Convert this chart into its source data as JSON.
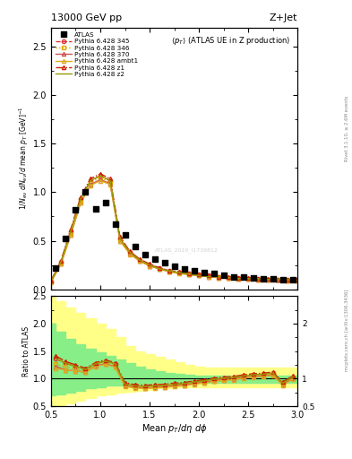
{
  "title_top": "13000 GeV pp",
  "title_right": "Z+Jet",
  "annotation": "<pT> (ATLAS UE in Z production)",
  "watermark": "ATLAS_2019_I1739812",
  "side_text": "Rivet 3.1.10, ≥ 2.6M events",
  "side_text2": "mcplots.cern.ch [arXiv:1306.3436]",
  "atlas_x": [
    0.55,
    0.65,
    0.75,
    0.85,
    0.95,
    1.05,
    1.15,
    1.25,
    1.35,
    1.45,
    1.55,
    1.65,
    1.75,
    1.85,
    1.95,
    2.05,
    2.15,
    2.25,
    2.35,
    2.45,
    2.55,
    2.65,
    2.75,
    2.85,
    2.95
  ],
  "atlas_y": [
    0.22,
    0.52,
    0.82,
    1.0,
    0.83,
    0.89,
    0.67,
    0.56,
    0.44,
    0.36,
    0.31,
    0.27,
    0.24,
    0.21,
    0.19,
    0.17,
    0.16,
    0.14,
    0.13,
    0.13,
    0.12,
    0.11,
    0.11,
    0.1,
    0.1
  ],
  "mc_x": [
    0.5,
    0.6,
    0.7,
    0.8,
    0.9,
    1.0,
    1.1,
    1.2,
    1.3,
    1.4,
    1.5,
    1.6,
    1.7,
    1.8,
    1.9,
    2.0,
    2.1,
    2.2,
    2.3,
    2.4,
    2.5,
    2.6,
    2.7,
    2.8,
    2.9,
    3.0
  ],
  "py345_y": [
    0.08,
    0.28,
    0.6,
    0.93,
    1.12,
    1.17,
    1.12,
    0.52,
    0.38,
    0.3,
    0.25,
    0.22,
    0.19,
    0.17,
    0.16,
    0.15,
    0.14,
    0.13,
    0.12,
    0.12,
    0.11,
    0.11,
    0.1,
    0.1,
    0.1,
    0.1
  ],
  "py346_y": [
    0.08,
    0.27,
    0.58,
    0.91,
    1.1,
    1.15,
    1.1,
    0.51,
    0.37,
    0.29,
    0.24,
    0.21,
    0.18,
    0.17,
    0.15,
    0.14,
    0.13,
    0.13,
    0.12,
    0.11,
    0.11,
    0.1,
    0.1,
    0.1,
    0.09,
    0.09
  ],
  "py370_y": [
    0.08,
    0.26,
    0.56,
    0.89,
    1.08,
    1.13,
    1.09,
    0.5,
    0.37,
    0.29,
    0.24,
    0.21,
    0.18,
    0.17,
    0.15,
    0.14,
    0.13,
    0.12,
    0.12,
    0.11,
    0.11,
    0.1,
    0.1,
    0.1,
    0.09,
    0.09
  ],
  "pyambt1_y": [
    0.07,
    0.26,
    0.56,
    0.89,
    1.07,
    1.12,
    1.08,
    0.5,
    0.36,
    0.29,
    0.24,
    0.21,
    0.18,
    0.16,
    0.15,
    0.14,
    0.13,
    0.12,
    0.12,
    0.11,
    0.11,
    0.1,
    0.1,
    0.1,
    0.09,
    0.09
  ],
  "pyz1_y": [
    0.09,
    0.29,
    0.62,
    0.95,
    1.14,
    1.19,
    1.14,
    0.54,
    0.39,
    0.31,
    0.26,
    0.22,
    0.19,
    0.18,
    0.16,
    0.15,
    0.14,
    0.13,
    0.13,
    0.12,
    0.12,
    0.11,
    0.11,
    0.1,
    0.1,
    0.1
  ],
  "pyz2_y": [
    0.08,
    0.28,
    0.6,
    0.93,
    1.12,
    1.17,
    1.12,
    0.52,
    0.38,
    0.3,
    0.25,
    0.21,
    0.19,
    0.17,
    0.16,
    0.14,
    0.13,
    0.13,
    0.12,
    0.11,
    0.11,
    0.11,
    0.1,
    0.1,
    0.1,
    0.09
  ],
  "ratio_x": [
    0.55,
    0.65,
    0.75,
    0.85,
    0.95,
    1.05,
    1.15,
    1.25,
    1.35,
    1.45,
    1.55,
    1.65,
    1.75,
    1.85,
    1.95,
    2.05,
    2.15,
    2.25,
    2.35,
    2.45,
    2.55,
    2.65,
    2.75,
    2.85,
    2.95
  ],
  "ratio_py345_y": [
    1.36,
    1.28,
    1.22,
    1.17,
    1.27,
    1.32,
    1.27,
    0.9,
    0.87,
    0.86,
    0.87,
    0.88,
    0.9,
    0.91,
    0.94,
    0.96,
    0.99,
    1.01,
    1.02,
    1.05,
    1.07,
    1.08,
    1.1,
    0.92,
    1.03
  ],
  "ratio_py346_y": [
    1.27,
    1.21,
    1.18,
    1.14,
    1.25,
    1.29,
    1.24,
    0.88,
    0.85,
    0.84,
    0.85,
    0.86,
    0.88,
    0.89,
    0.92,
    0.94,
    0.97,
    0.99,
    1.0,
    1.03,
    1.05,
    1.06,
    1.08,
    0.9,
    1.01
  ],
  "ratio_py370_y": [
    1.22,
    1.16,
    1.14,
    1.12,
    1.23,
    1.27,
    1.22,
    0.87,
    0.84,
    0.83,
    0.84,
    0.85,
    0.87,
    0.88,
    0.91,
    0.93,
    0.96,
    0.98,
    0.99,
    1.02,
    1.04,
    1.05,
    1.07,
    0.89,
    1.0
  ],
  "ratio_pyambt1_y": [
    1.18,
    1.16,
    1.14,
    1.12,
    1.22,
    1.26,
    1.21,
    0.86,
    0.83,
    0.82,
    0.83,
    0.84,
    0.86,
    0.87,
    0.9,
    0.92,
    0.95,
    0.97,
    0.98,
    1.01,
    1.03,
    1.04,
    1.06,
    0.88,
    0.99
  ],
  "ratio_pyz1_y": [
    1.41,
    1.31,
    1.25,
    1.19,
    1.29,
    1.34,
    1.29,
    0.93,
    0.89,
    0.88,
    0.89,
    0.9,
    0.92,
    0.93,
    0.96,
    0.98,
    1.01,
    1.03,
    1.04,
    1.07,
    1.09,
    1.1,
    1.12,
    0.94,
    1.05
  ],
  "ratio_pyz2_y": [
    1.36,
    1.28,
    1.22,
    1.17,
    1.27,
    1.32,
    1.27,
    0.9,
    0.87,
    0.86,
    0.87,
    0.88,
    0.9,
    0.91,
    0.94,
    0.96,
    0.99,
    1.01,
    1.02,
    1.05,
    1.07,
    1.08,
    1.1,
    0.92,
    1.03
  ],
  "band_x": [
    0.5,
    0.6,
    0.7,
    0.8,
    0.9,
    1.0,
    1.1,
    1.2,
    1.3,
    1.4,
    1.5,
    1.6,
    1.7,
    1.8,
    1.9,
    2.0,
    2.1,
    2.2,
    2.3,
    2.4,
    2.5,
    2.6,
    2.7,
    2.8,
    2.9,
    3.0
  ],
  "band_yellow_lo": [
    0.5,
    0.52,
    0.55,
    0.6,
    0.65,
    0.7,
    0.72,
    0.75,
    0.77,
    0.78,
    0.8,
    0.82,
    0.83,
    0.84,
    0.85,
    0.85,
    0.85,
    0.85,
    0.85,
    0.85,
    0.85,
    0.85,
    0.85,
    0.85,
    0.85,
    0.85
  ],
  "band_yellow_hi": [
    2.5,
    2.4,
    2.3,
    2.2,
    2.1,
    2.0,
    1.9,
    1.75,
    1.6,
    1.5,
    1.45,
    1.4,
    1.35,
    1.3,
    1.25,
    1.22,
    1.2,
    1.2,
    1.2,
    1.2,
    1.2,
    1.2,
    1.2,
    1.2,
    1.2,
    1.2
  ],
  "band_green_lo": [
    0.7,
    0.72,
    0.75,
    0.78,
    0.82,
    0.85,
    0.87,
    0.88,
    0.89,
    0.9,
    0.91,
    0.92,
    0.92,
    0.93,
    0.93,
    0.93,
    0.93,
    0.93,
    0.93,
    0.93,
    0.93,
    0.93,
    0.93,
    0.93,
    0.93,
    0.93
  ],
  "band_green_hi": [
    2.0,
    1.85,
    1.72,
    1.62,
    1.54,
    1.48,
    1.42,
    1.35,
    1.28,
    1.22,
    1.17,
    1.13,
    1.1,
    1.08,
    1.07,
    1.06,
    1.06,
    1.06,
    1.06,
    1.06,
    1.06,
    1.06,
    1.06,
    1.06,
    1.06,
    1.06
  ],
  "color_345": "#dd3333",
  "color_346": "#ddaa00",
  "color_370": "#cc5555",
  "color_ambt1": "#ddaa22",
  "color_z1": "#cc2200",
  "color_z2": "#999900",
  "ylim_main": [
    0.0,
    2.7
  ],
  "ylim_ratio": [
    0.5,
    2.5
  ],
  "xlim": [
    0.5,
    3.0
  ],
  "yticks_main": [
    0.0,
    0.5,
    1.0,
    1.5,
    2.0,
    2.5
  ],
  "yticks_ratio": [
    0.5,
    1.0,
    1.5,
    2.0,
    2.5
  ]
}
